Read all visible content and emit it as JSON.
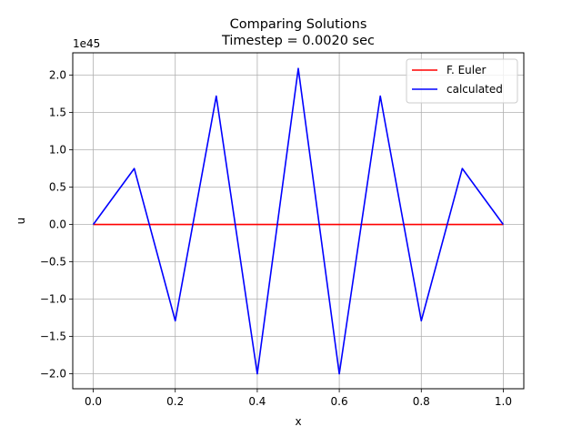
{
  "chart_data": {
    "type": "line",
    "title": "Comparing Solutions",
    "subtitle": "Timestep = 0.0020 sec",
    "xlabel": "x",
    "ylabel": "u",
    "y_offset_label": "1e45",
    "xlim": [
      -0.05,
      1.05
    ],
    "ylim": [
      -2.2,
      2.3
    ],
    "x_ticks": [
      0.0,
      0.2,
      0.4,
      0.6,
      0.8,
      1.0
    ],
    "x_tick_labels": [
      "0.0",
      "0.2",
      "0.4",
      "0.6",
      "0.8",
      "1.0"
    ],
    "y_ticks": [
      -2.0,
      -1.5,
      -1.0,
      -0.5,
      0.0,
      0.5,
      1.0,
      1.5,
      2.0
    ],
    "y_tick_labels": [
      "−2.0",
      "−1.5",
      "−1.0",
      "−0.5",
      "0.0",
      "0.5",
      "1.0",
      "1.5",
      "2.0"
    ],
    "grid": true,
    "legend_position": "top-right",
    "series": [
      {
        "name": "F. Euler",
        "color": "#ff0000",
        "x": [
          0.0,
          0.1,
          0.2,
          0.3,
          0.4,
          0.5,
          0.6,
          0.7,
          0.8,
          0.9,
          1.0
        ],
        "y": [
          0,
          0,
          0,
          0,
          0,
          0,
          0,
          0,
          0,
          0,
          0
        ]
      },
      {
        "name": "calculated",
        "color": "#0000ff",
        "x": [
          0.0,
          0.1,
          0.2,
          0.3,
          0.4,
          0.5,
          0.6,
          0.7,
          0.8,
          0.9,
          1.0
        ],
        "y": [
          0.0,
          0.75,
          -1.29,
          1.72,
          -2.0,
          2.09,
          -2.0,
          1.72,
          -1.29,
          0.75,
          0.0
        ]
      }
    ]
  }
}
